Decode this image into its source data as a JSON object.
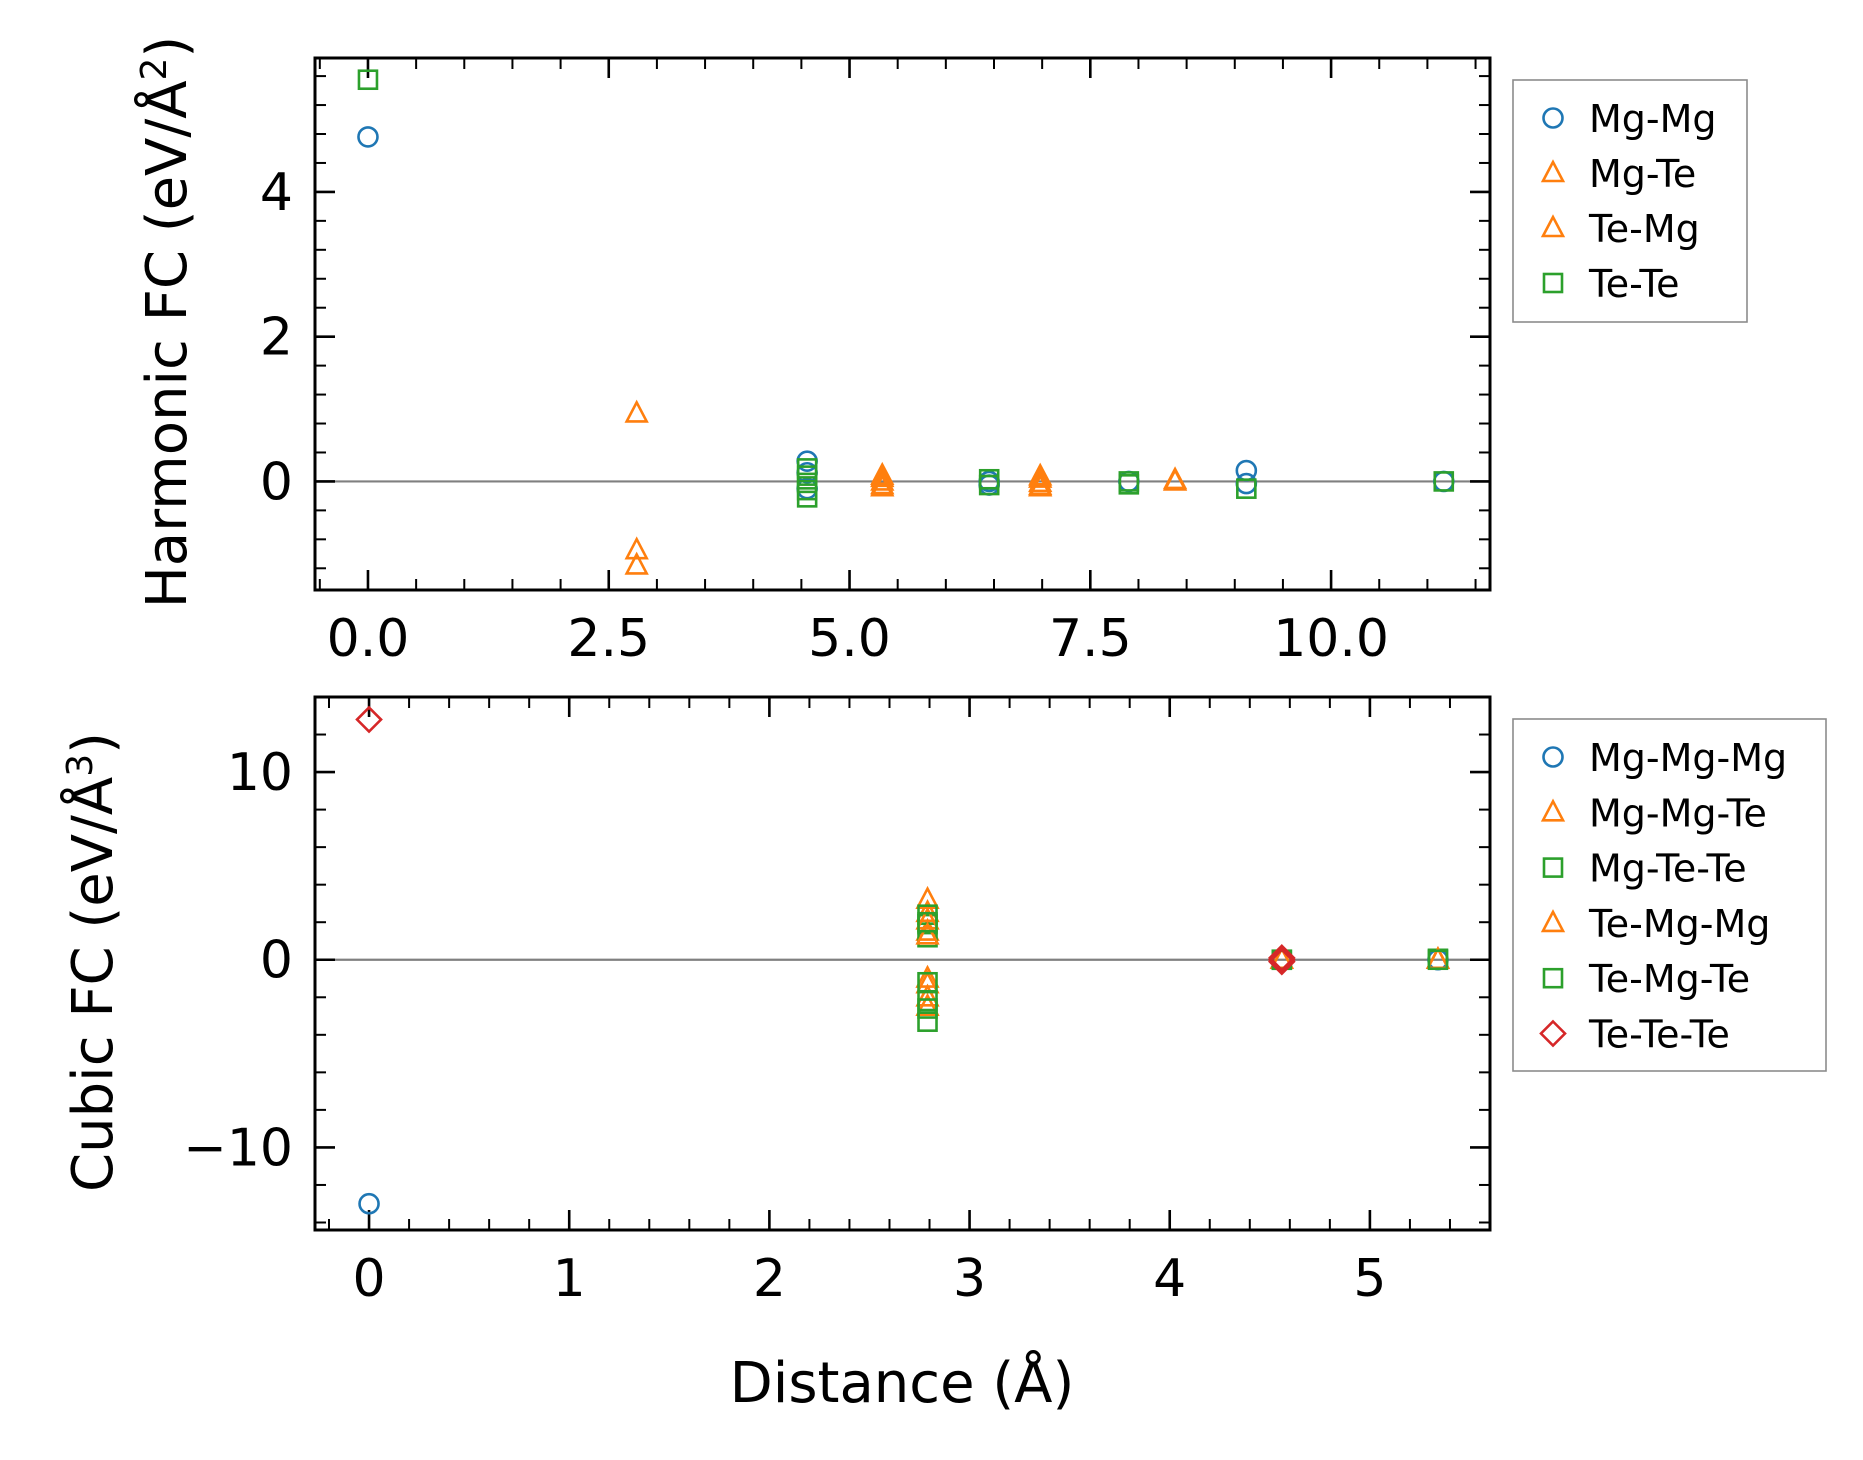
{
  "chart_data": [
    {
      "id": "harmonic",
      "type": "scatter",
      "title": "",
      "xlabel": "",
      "ylabel": "Harmonic FC (eV/Å",
      "ylabel_sup": "2",
      "ylabel_close": ")",
      "xlim": [
        -0.55,
        11.65
      ],
      "ylim": [
        -1.5,
        5.85
      ],
      "xticks": [
        0.0,
        2.5,
        5.0,
        7.5,
        10.0
      ],
      "xtick_labels": [
        "0.0",
        "2.5",
        "5.0",
        "7.5",
        "10.0"
      ],
      "yticks": [
        0,
        2,
        4
      ],
      "ytick_labels": [
        "0",
        "2",
        "4"
      ],
      "zero_line": true,
      "legend_position": "outside-right-top",
      "series": [
        {
          "name": "Mg-Mg",
          "marker": "circle",
          "color": "#1f77b4",
          "x": [
            0.0,
            4.56,
            4.56,
            4.56,
            6.45,
            6.45,
            7.9,
            9.12,
            9.12,
            11.17
          ],
          "y": [
            4.76,
            0.28,
            0.12,
            -0.1,
            0.0,
            -0.05,
            0.0,
            0.15,
            -0.03,
            0.0
          ]
        },
        {
          "name": "Mg-Te",
          "marker": "triangle",
          "color": "#ff7f0e",
          "x": [
            2.79,
            2.79,
            2.79,
            5.34,
            5.34,
            5.34,
            6.98,
            6.98,
            6.98,
            8.38
          ],
          "y": [
            0.94,
            -0.95,
            -1.16,
            0.08,
            0.0,
            -0.08,
            0.07,
            -0.02,
            -0.08,
            0.0
          ]
        },
        {
          "name": "Te-Mg",
          "marker": "triangle",
          "color": "#ff7f0e",
          "x": [
            5.34,
            5.34,
            6.98,
            6.98,
            8.38
          ],
          "y": [
            0.05,
            -0.05,
            0.04,
            -0.06,
            0.02
          ]
        },
        {
          "name": "Te-Te",
          "marker": "square",
          "color": "#2ca02c",
          "x": [
            0.0,
            4.56,
            4.56,
            4.56,
            4.56,
            4.56,
            6.45,
            6.45,
            7.9,
            7.9,
            9.12,
            11.17
          ],
          "y": [
            5.55,
            0.18,
            0.08,
            -0.02,
            -0.12,
            -0.22,
            0.03,
            -0.05,
            0.0,
            -0.04,
            -0.1,
            0.0
          ]
        }
      ]
    },
    {
      "id": "cubic",
      "type": "scatter",
      "title": "",
      "xlabel": "Distance (Å)",
      "ylabel": "Cubic FC (eV/Å",
      "ylabel_sup": "3",
      "ylabel_close": ")",
      "xlim": [
        -0.27,
        5.6
      ],
      "ylim": [
        -14.4,
        14.0
      ],
      "xticks": [
        0,
        1,
        2,
        3,
        4,
        5
      ],
      "xtick_labels": [
        "0",
        "1",
        "2",
        "3",
        "4",
        "5"
      ],
      "yticks": [
        -10,
        0,
        10
      ],
      "ytick_labels": [
        "−10",
        "0",
        "10"
      ],
      "zero_line": true,
      "legend_position": "outside-right-top",
      "series": [
        {
          "name": "Mg-Mg-Mg",
          "marker": "circle",
          "color": "#1f77b4",
          "x": [
            0.0,
            4.56,
            5.34
          ],
          "y": [
            -13.0,
            0.0,
            0.0
          ]
        },
        {
          "name": "Mg-Mg-Te",
          "marker": "triangle",
          "color": "#ff7f0e",
          "x": [
            2.79,
            2.79,
            2.79,
            2.79,
            2.79,
            2.79,
            4.56,
            5.34
          ],
          "y": [
            3.2,
            2.5,
            1.5,
            -1.3,
            -2.0,
            -2.5,
            0.0,
            0.0
          ]
        },
        {
          "name": "Mg-Te-Te",
          "marker": "square",
          "color": "#2ca02c",
          "x": [
            2.79,
            2.79,
            2.79,
            2.79,
            2.79,
            4.56,
            5.34
          ],
          "y": [
            2.4,
            1.9,
            1.2,
            -2.2,
            -3.3,
            0.0,
            0.05
          ]
        },
        {
          "name": "Te-Mg-Mg",
          "marker": "triangle",
          "color": "#ff7f0e",
          "x": [
            2.79,
            2.79,
            2.79,
            4.56,
            5.34
          ],
          "y": [
            2.1,
            1.3,
            -1.0,
            0.0,
            0.0
          ]
        },
        {
          "name": "Te-Mg-Te",
          "marker": "square",
          "color": "#2ca02c",
          "x": [
            2.79,
            2.79,
            2.79,
            4.56,
            5.34
          ],
          "y": [
            2.0,
            -1.2,
            -2.6,
            0.0,
            0.0
          ]
        },
        {
          "name": "Te-Te-Te",
          "marker": "diamond",
          "color": "#d62728",
          "x": [
            0.0,
            4.56,
            4.56,
            4.56
          ],
          "y": [
            12.8,
            0.1,
            0.0,
            -0.1
          ]
        }
      ]
    }
  ]
}
